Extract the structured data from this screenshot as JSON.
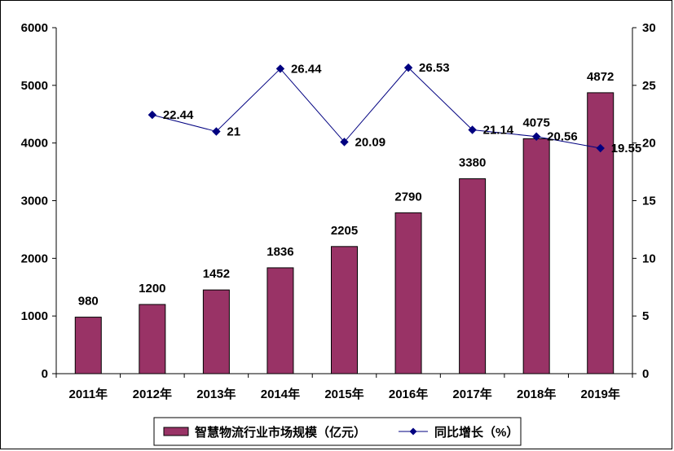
{
  "chart_data": {
    "type": "bar",
    "categories": [
      "2011年",
      "2012年",
      "2013年",
      "2014年",
      "2015年",
      "2016年",
      "2017年",
      "2018年",
      "2019年"
    ],
    "series": [
      {
        "name": "智慧物流行业市场规模（亿元）",
        "type": "bar",
        "axis": "left",
        "color": "#993366",
        "values": [
          980,
          1200,
          1452,
          1836,
          2205,
          2790,
          3380,
          4075,
          4872
        ],
        "labels": [
          "980",
          "1200",
          "1452",
          "1836",
          "2205",
          "2790",
          "3380",
          "4075",
          "4872"
        ]
      },
      {
        "name": "同比增长（%）",
        "type": "line",
        "axis": "right",
        "color": "#000080",
        "values": [
          null,
          22.44,
          21,
          26.44,
          20.09,
          26.53,
          21.14,
          20.56,
          19.55
        ],
        "labels": [
          "",
          "22.44",
          "21",
          "26.44",
          "20.09",
          "26.53",
          "21.14",
          "20.56",
          "19.55"
        ]
      }
    ],
    "y_left": {
      "min": 0,
      "max": 6000,
      "ticks": [
        "0",
        "1000",
        "2000",
        "3000",
        "4000",
        "5000",
        "6000"
      ]
    },
    "y_right": {
      "min": 0,
      "max": 30,
      "ticks": [
        "0",
        "5",
        "10",
        "15",
        "20",
        "25",
        "30"
      ]
    },
    "title": "",
    "xlabel": "",
    "ylabel": "",
    "grid": false,
    "legend_position": "bottom"
  }
}
